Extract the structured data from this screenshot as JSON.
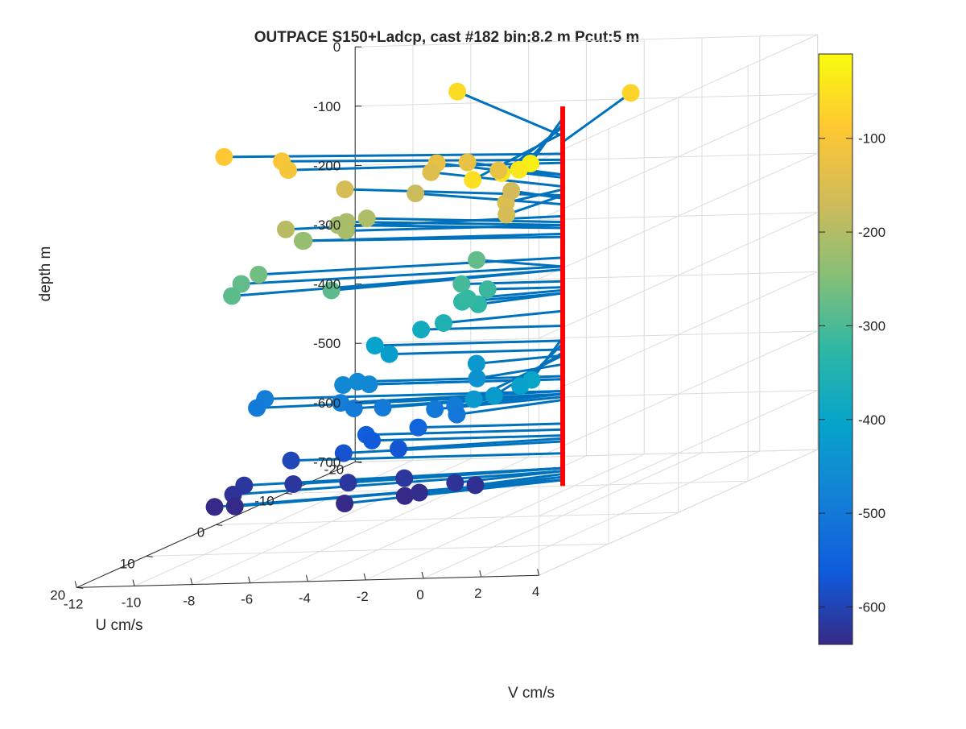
{
  "chart_data": {
    "type": "scatter",
    "title": "OUTPACE S150+Ladcp, cast #182 bin:8.2 m  Pcut:5 m",
    "xlabel": "V cm/s",
    "ylabel": "U cm/s",
    "zlabel": "depth m",
    "vlim": [
      -12,
      4
    ],
    "ulim": [
      -20,
      20
    ],
    "zlim": [
      -700,
      0
    ],
    "v_ticks": [
      "-12",
      "-10",
      "-8",
      "-6",
      "-4",
      "-2",
      "0",
      "2",
      "4"
    ],
    "u_ticks": [
      "-20",
      "-10",
      "0",
      "10",
      "20"
    ],
    "z_ticks": [
      "0",
      "-100",
      "-200",
      "-300",
      "-400",
      "-500",
      "-600",
      "-700"
    ],
    "colorbar": {
      "colormap": "parula",
      "range": [
        -640,
        -10
      ],
      "ticks": [
        "-100",
        "-200",
        "-300",
        "-400",
        "-500",
        "-600"
      ]
    },
    "stick_color": "#0072BD",
    "axis_line_color": "#FF0000",
    "grid": true,
    "points": [
      {
        "v": 2.5,
        "u": 15,
        "z": -30
      },
      {
        "v": 2.1,
        "u": 15,
        "z": -40
      },
      {
        "v": 1.5,
        "u": 15,
        "z": -45
      },
      {
        "v": 0.5,
        "u": 15,
        "z": -55
      },
      {
        "v": -1.5,
        "u": -16,
        "z": -70
      },
      {
        "v": -7.5,
        "u": -16,
        "z": -60
      },
      {
        "v": -12.2,
        "u": -2,
        "z": -90
      },
      {
        "v": -10.2,
        "u": -2,
        "z": -100
      },
      {
        "v": -9.5,
        "u": 0,
        "z": -105
      },
      {
        "v": -1.0,
        "u": 4,
        "z": -150
      },
      {
        "v": -0.5,
        "u": 6,
        "z": -160
      },
      {
        "v": -2.7,
        "u": -2,
        "z": -125
      },
      {
        "v": -4.5,
        "u": -5,
        "z": -125
      },
      {
        "v": -5.8,
        "u": -6,
        "z": -130
      },
      {
        "v": -6.0,
        "u": -6,
        "z": -145
      },
      {
        "v": -2.5,
        "u": -3,
        "z": -165
      },
      {
        "v": -6.3,
        "u": -5,
        "z": -175
      },
      {
        "v": -8.5,
        "u": -4,
        "z": -160
      },
      {
        "v": -9.1,
        "u": 2,
        "z": -195
      },
      {
        "v": -7.5,
        "u": -3,
        "z": -205
      },
      {
        "v": -8.2,
        "u": -3,
        "z": -210
      },
      {
        "v": -8.5,
        "u": -3,
        "z": -215
      },
      {
        "v": -7.5,
        "u": 0,
        "z": -210
      },
      {
        "v": -9.0,
        "u": 0,
        "z": -225
      },
      {
        "v": -9.2,
        "u": -1,
        "z": -230
      },
      {
        "v": -9.8,
        "u": 3,
        "z": -265
      },
      {
        "v": -10.4,
        "u": 3,
        "z": -280
      },
      {
        "v": -10.0,
        "u": 6,
        "z": -285
      },
      {
        "v": -6.8,
        "u": 5,
        "z": -285
      },
      {
        "v": -3.7,
        "u": -3,
        "z": -280
      },
      {
        "v": -3.5,
        "u": 0,
        "z": -305
      },
      {
        "v": -3.0,
        "u": 2,
        "z": -325
      },
      {
        "v": -2.6,
        "u": 0,
        "z": -315
      },
      {
        "v": -2.2,
        "u": 3,
        "z": -325
      },
      {
        "v": -2.8,
        "u": 2,
        "z": -320
      },
      {
        "v": -3.4,
        "u": 3,
        "z": -355
      },
      {
        "v": -4.9,
        "u": 0,
        "z": -380
      },
      {
        "v": -6.5,
        "u": 0,
        "z": -405
      },
      {
        "v": -6.0,
        "u": 0,
        "z": -420
      },
      {
        "v": -2.5,
        "u": 2,
        "z": -430
      },
      {
        "v": -2.0,
        "u": 4,
        "z": -445
      },
      {
        "v": 2.3,
        "u": 14,
        "z": -400
      },
      {
        "v": 1.9,
        "u": 14,
        "z": -410
      },
      {
        "v": 1.0,
        "u": 14,
        "z": -425
      },
      {
        "v": 0.3,
        "u": 14,
        "z": -430
      },
      {
        "v": -10.3,
        "u": 0,
        "z": -490
      },
      {
        "v": -10.1,
        "u": 2,
        "z": -495
      },
      {
        "v": -7.6,
        "u": 0,
        "z": -470
      },
      {
        "v": -7.1,
        "u": 0,
        "z": -465
      },
      {
        "v": -6.7,
        "u": 0,
        "z": -470
      },
      {
        "v": -7.2,
        "u": 2,
        "z": -490
      },
      {
        "v": -6.5,
        "u": 3,
        "z": -495
      },
      {
        "v": -5.5,
        "u": 3,
        "z": -495
      },
      {
        "v": -3.7,
        "u": 3,
        "z": -500
      },
      {
        "v": -3.0,
        "u": 3,
        "z": -495
      },
      {
        "v": -2.7,
        "u": 4,
        "z": -505
      },
      {
        "v": -6.8,
        "u": 0,
        "z": -555
      },
      {
        "v": -6.6,
        "u": 0,
        "z": -565
      },
      {
        "v": -7.1,
        "u": 2,
        "z": -575
      },
      {
        "v": -5.2,
        "u": 2,
        "z": -570
      },
      {
        "v": -5.0,
        "u": 0,
        "z": -545
      },
      {
        "v": -9.4,
        "u": 0,
        "z": -595
      },
      {
        "v": -10.3,
        "u": 3,
        "z": -620
      },
      {
        "v": -10.2,
        "u": 5,
        "z": -625
      },
      {
        "v": -8.6,
        "u": 3,
        "z": -620
      },
      {
        "v": -6.7,
        "u": 3,
        "z": -620
      },
      {
        "v": -5.0,
        "u": 2,
        "z": -620
      },
      {
        "v": -3.0,
        "u": 3,
        "z": -625
      },
      {
        "v": -2.3,
        "u": 3,
        "z": -630
      },
      {
        "v": -10.6,
        "u": 6,
        "z": -640
      },
      {
        "v": -9.9,
        "u": 6,
        "z": -640
      },
      {
        "v": -6.1,
        "u": 6,
        "z": -640
      },
      {
        "v": -4.5,
        "u": 4,
        "z": -640
      },
      {
        "v": -4.0,
        "u": 4,
        "z": -635
      }
    ]
  }
}
